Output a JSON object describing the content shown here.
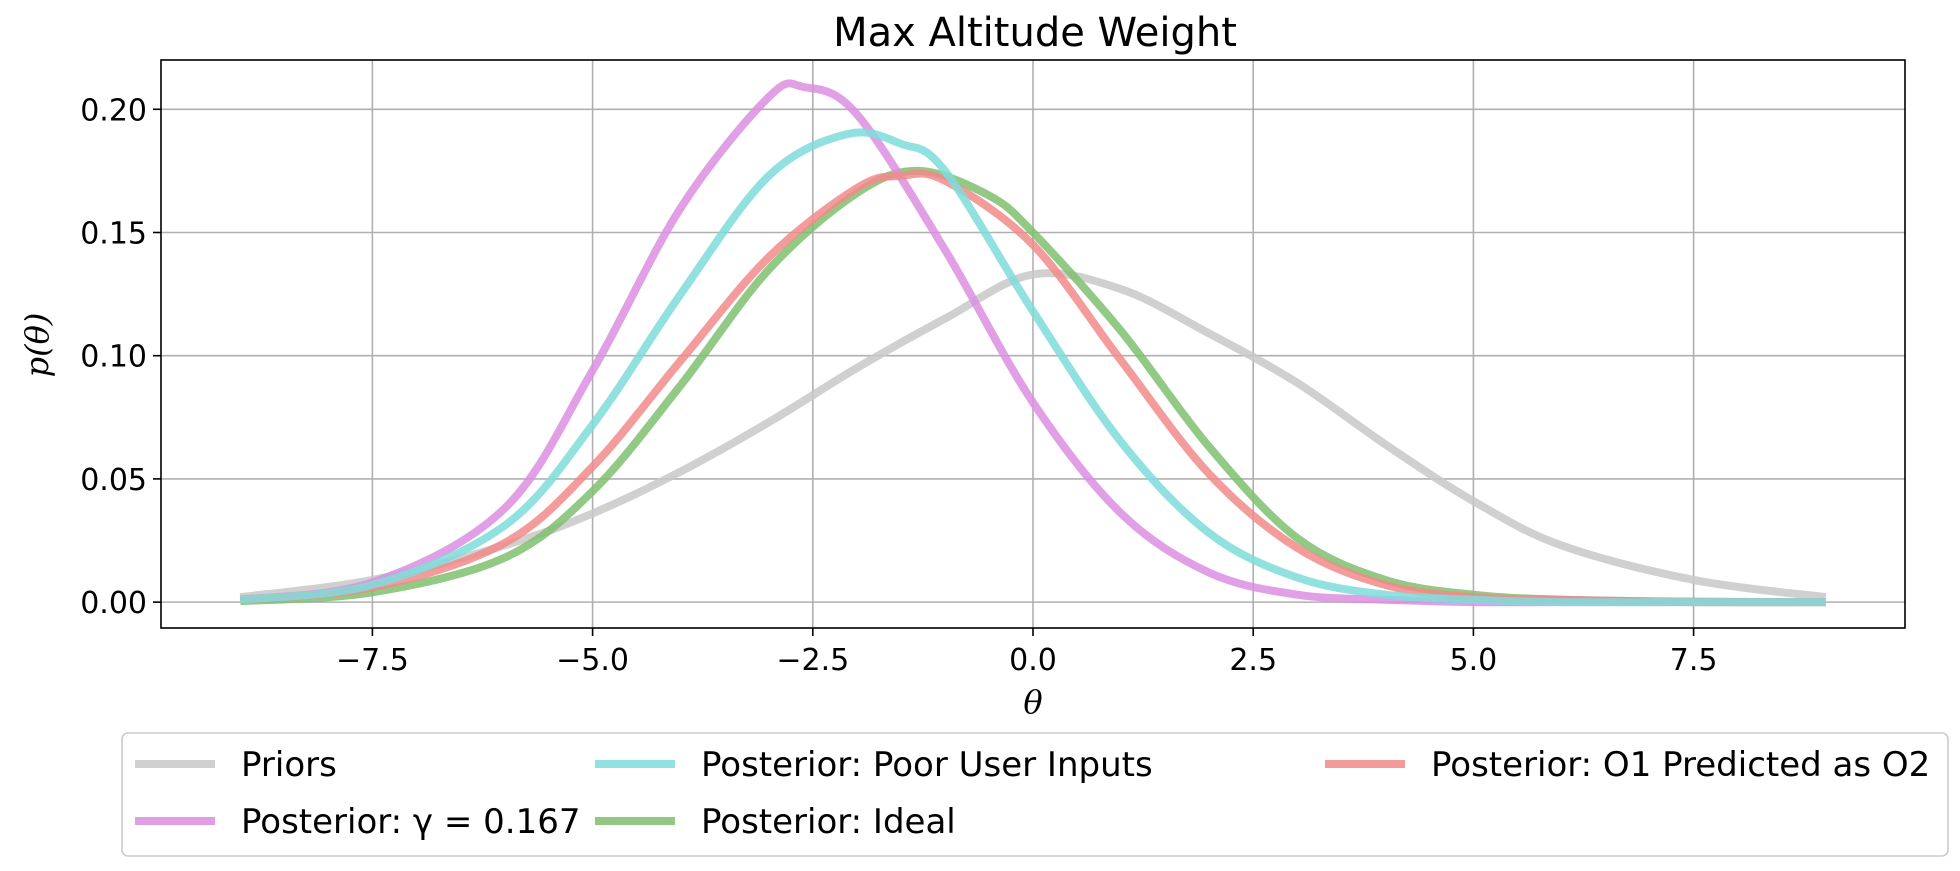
{
  "chart_data": {
    "type": "line",
    "title": "Max Altitude Weight",
    "xlabel": "θ",
    "ylabel": "p(θ)",
    "xlim": [
      -9.9,
      9.9
    ],
    "ylim": [
      -0.0105,
      0.22
    ],
    "xticks": [
      -7.5,
      -5.0,
      -2.5,
      0.0,
      2.5,
      5.0,
      7.5
    ],
    "xtick_labels": [
      "−7.5",
      "−5.0",
      "−2.5",
      "0.0",
      "2.5",
      "5.0",
      "7.5"
    ],
    "yticks": [
      0.0,
      0.05,
      0.1,
      0.15,
      0.2
    ],
    "ytick_labels": [
      "0.00",
      "0.05",
      "0.10",
      "0.15",
      "0.20"
    ],
    "grid": true,
    "legend_position": "bottom-outside",
    "series": [
      {
        "name": "Priors",
        "legend_label": "Priors",
        "color": "#c8c8c8",
        "x": [
          -9,
          -7.5,
          -6,
          -5,
          -4,
          -3,
          -2,
          -1,
          0,
          1,
          2,
          3,
          4,
          5,
          6,
          7.5,
          9
        ],
        "y": [
          0.002,
          0.009,
          0.023,
          0.036,
          0.053,
          0.073,
          0.095,
          0.115,
          0.133,
          0.127,
          0.109,
          0.089,
          0.064,
          0.041,
          0.023,
          0.009,
          0.002
        ]
      },
      {
        "name": "Posterior: Ideal",
        "legend_label": "Posterior: Ideal",
        "color": "#7fbf6f",
        "x": [
          -9,
          -7.5,
          -6,
          -5,
          -4,
          -3,
          -2,
          -1.3,
          -0.5,
          0,
          1,
          2,
          3,
          4,
          5,
          6,
          7.5,
          9
        ],
        "y": [
          0.0004,
          0.004,
          0.018,
          0.045,
          0.088,
          0.135,
          0.166,
          0.175,
          0.165,
          0.15,
          0.11,
          0.063,
          0.026,
          0.009,
          0.003,
          0.001,
          0.0002,
          0.0
        ]
      },
      {
        "name": "Posterior: γ = 0.167",
        "legend_label": "Posterior: γ = 0.167",
        "color": "#dc8ee0",
        "x": [
          -9,
          -7.5,
          -6,
          -5,
          -4,
          -3,
          -2.6,
          -2,
          -1,
          0,
          1,
          2,
          3,
          4,
          5,
          6,
          7.5,
          9
        ],
        "y": [
          0.001,
          0.008,
          0.038,
          0.094,
          0.16,
          0.205,
          0.209,
          0.198,
          0.143,
          0.081,
          0.036,
          0.012,
          0.003,
          0.001,
          0.0,
          0.0,
          0.0,
          0.0
        ]
      },
      {
        "name": "Posterior: O1 Predicted as O2",
        "legend_label": "Posterior: O1 Predicted as O2",
        "color": "#f28a8a",
        "x": [
          -9,
          -7.5,
          -6,
          -5,
          -4,
          -3,
          -2,
          -1.5,
          -1,
          0,
          1,
          2,
          3,
          4,
          5,
          6,
          7.5,
          9
        ],
        "y": [
          0.001,
          0.006,
          0.024,
          0.055,
          0.098,
          0.14,
          0.168,
          0.173,
          0.171,
          0.145,
          0.098,
          0.052,
          0.022,
          0.007,
          0.002,
          0.001,
          0.0,
          0.0
        ]
      },
      {
        "name": "Posterior: Poor User Inputs",
        "legend_label": "Posterior: Poor User Inputs",
        "color": "#7fdcdc",
        "x": [
          -9,
          -7.5,
          -6,
          -5,
          -4,
          -3,
          -2.1,
          -1.5,
          -1,
          0,
          1,
          2,
          3,
          4,
          5,
          6,
          7.5,
          9
        ],
        "y": [
          0.001,
          0.007,
          0.031,
          0.072,
          0.125,
          0.173,
          0.19,
          0.186,
          0.175,
          0.118,
          0.065,
          0.028,
          0.01,
          0.003,
          0.001,
          0.0,
          0.0,
          0.0
        ]
      }
    ],
    "legend_order": [
      0,
      2,
      4,
      1,
      3
    ]
  }
}
